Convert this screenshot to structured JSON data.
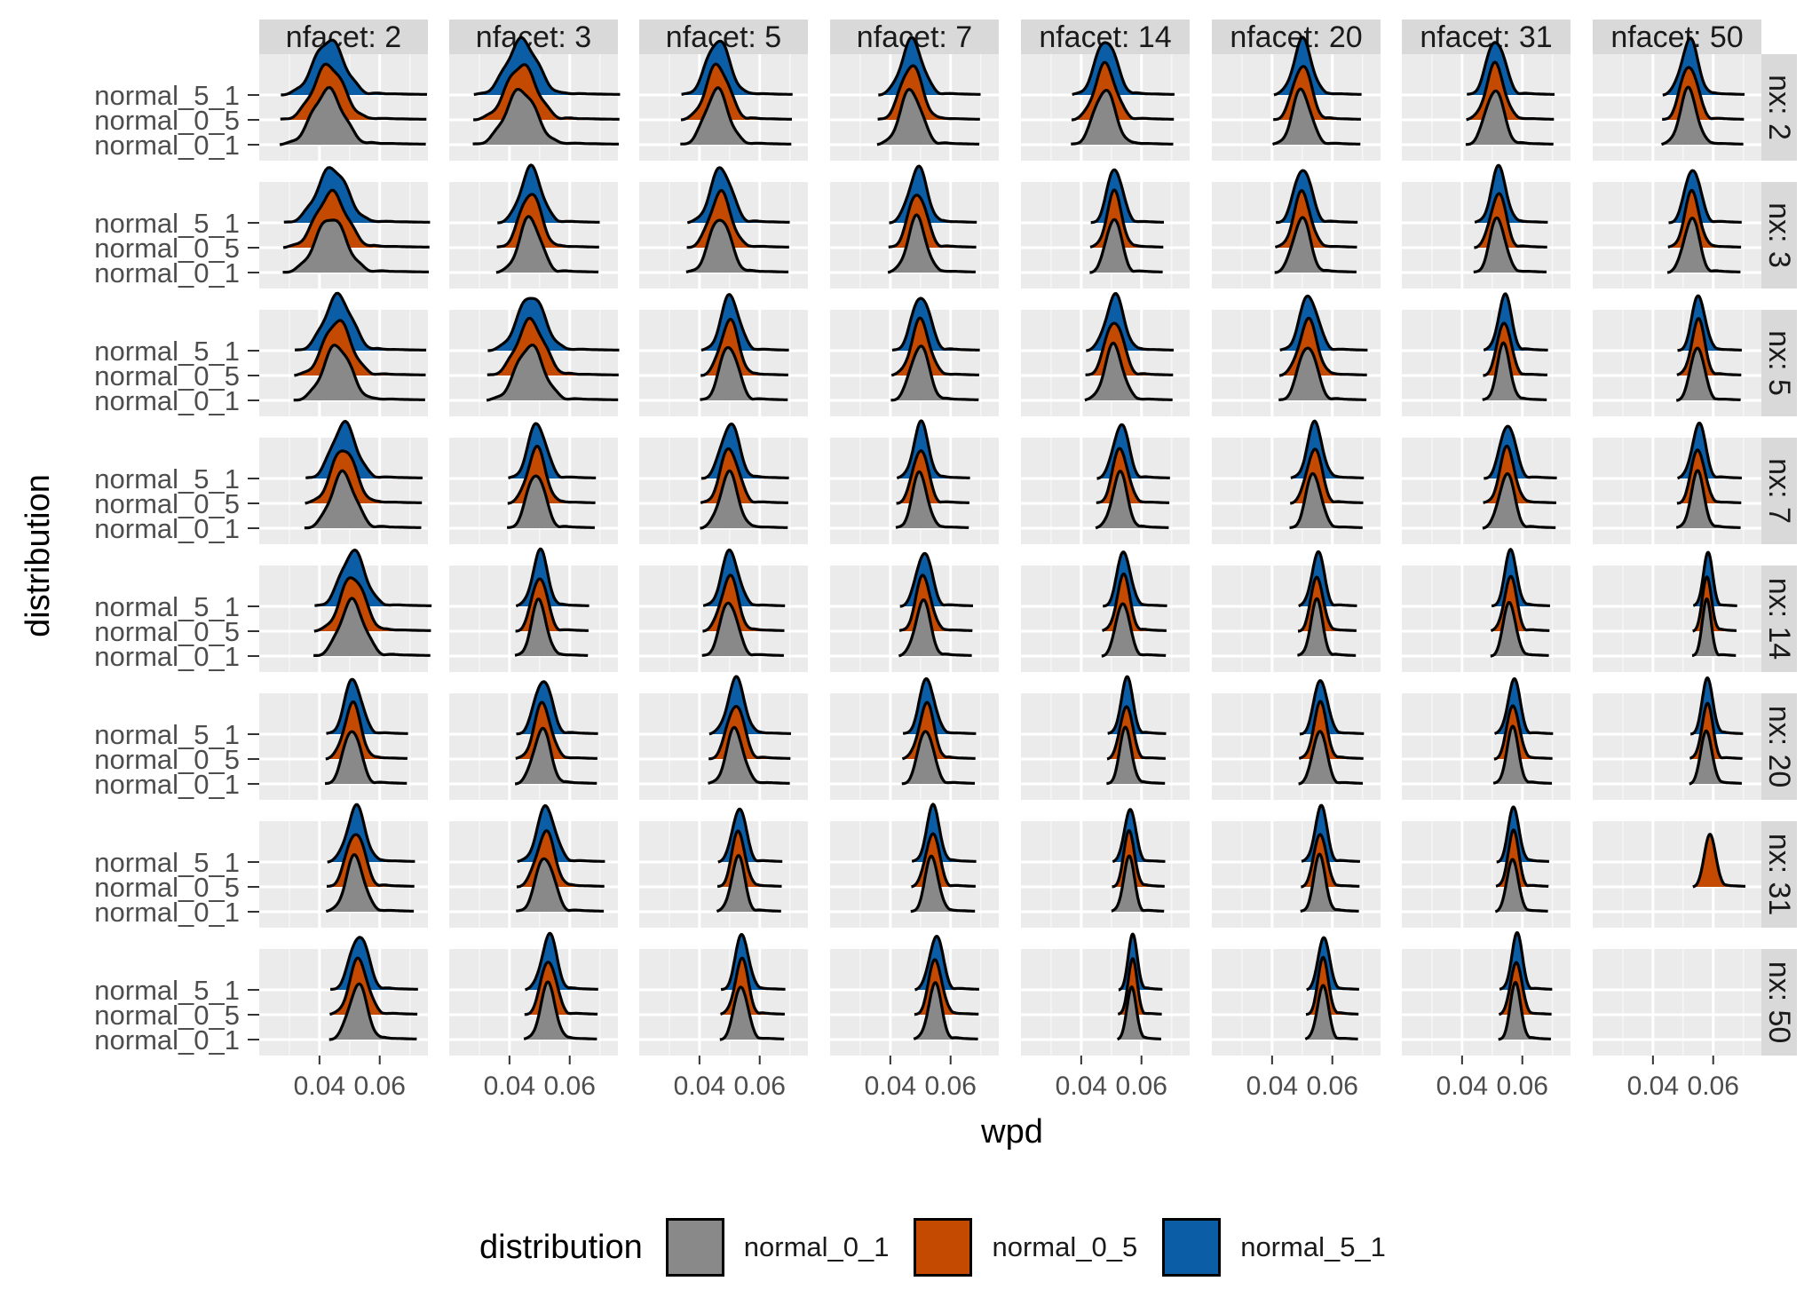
{
  "chart_data": {
    "type": "ridgeline",
    "facet_cols_label": "nfacet",
    "facet_rows_label": "nx",
    "facet_cols": [
      2,
      3,
      5,
      7,
      14,
      20,
      31,
      50
    ],
    "facet_rows": [
      2,
      3,
      5,
      7,
      14,
      20,
      31,
      50
    ],
    "col_strip_labels": [
      "nfacet: 2",
      "nfacet: 3",
      "nfacet: 5",
      "nfacet: 7",
      "nfacet: 14",
      "nfacet: 20",
      "nfacet: 31",
      "nfacet: 50"
    ],
    "row_strip_labels": [
      "nx: 2",
      "nx: 3",
      "nx: 5",
      "nx: 7",
      "nx: 14",
      "nx: 20",
      "nx: 31",
      "nx: 50"
    ],
    "xlabel": "wpd",
    "ylabel": "distribution",
    "x_tick_labels": [
      "0.04",
      "0.06"
    ],
    "x_ticks": [
      0.04,
      0.06
    ],
    "xlim": [
      0.02,
      0.076
    ],
    "y_categories": [
      "normal_0_1",
      "normal_0_5",
      "normal_5_1"
    ],
    "legend": {
      "title": "distribution",
      "position": "bottom",
      "items": [
        "normal_0_1",
        "normal_0_5",
        "normal_5_1"
      ]
    },
    "colors": {
      "normal_0_1": "#898989",
      "normal_0_5": "#c34a00",
      "normal_5_1": "#0b5ea6",
      "panel_background": "#ebebeb",
      "strip_background": "#d9d9d9",
      "grid": "#ffffff"
    },
    "peak_wpd_by_row": {
      "nx_2": [
        0.043,
        0.044,
        0.046,
        0.047,
        0.048,
        0.05,
        0.051,
        0.052
      ],
      "nx_3": [
        0.044,
        0.047,
        0.047,
        0.049,
        0.051,
        0.05,
        0.052,
        0.053
      ],
      "nx_5": [
        0.046,
        0.047,
        0.05,
        0.05,
        0.051,
        0.052,
        0.054,
        0.055
      ],
      "nx_7": [
        0.048,
        0.049,
        0.05,
        0.05,
        0.053,
        0.054,
        0.055,
        0.055
      ],
      "nx_14": [
        0.051,
        0.05,
        0.05,
        0.051,
        0.054,
        0.055,
        0.056,
        0.058
      ],
      "nx_20": [
        0.051,
        0.051,
        0.052,
        0.052,
        0.055,
        0.056,
        0.057,
        0.058
      ],
      "nx_31": [
        0.052,
        0.052,
        0.053,
        0.054,
        0.056,
        0.056,
        0.057,
        0.059
      ],
      "nx_50": [
        0.053,
        0.053,
        0.054,
        0.055,
        0.057,
        0.057,
        0.058,
        null
      ]
    },
    "spread_wpd_by_row": {
      "nx_2": [
        0.005,
        0.005,
        0.0038,
        0.0035,
        0.0035,
        0.003,
        0.003,
        0.0028
      ],
      "nx_3": [
        0.005,
        0.0035,
        0.0035,
        0.003,
        0.0025,
        0.0028,
        0.0025,
        0.0025
      ],
      "nx_5": [
        0.0045,
        0.0045,
        0.003,
        0.003,
        0.003,
        0.003,
        0.0022,
        0.0022
      ],
      "nx_7": [
        0.004,
        0.003,
        0.003,
        0.0025,
        0.0025,
        0.0025,
        0.0025,
        0.0022
      ],
      "nx_14": [
        0.004,
        0.0025,
        0.0028,
        0.0025,
        0.0022,
        0.002,
        0.002,
        0.0015
      ],
      "nx_20": [
        0.0028,
        0.0028,
        0.0028,
        0.0025,
        0.002,
        0.0022,
        0.002,
        0.0018
      ],
      "nx_31": [
        0.003,
        0.003,
        0.0022,
        0.0022,
        0.0018,
        0.002,
        0.0018,
        0.0018
      ],
      "nx_50": [
        0.003,
        0.0025,
        0.0022,
        0.0022,
        0.0015,
        0.0018,
        0.0018,
        null
      ]
    },
    "missing_series": {
      "nx_31|nfacet_50": [
        "normal_0_1",
        "normal_5_1"
      ]
    },
    "grid": true
  }
}
